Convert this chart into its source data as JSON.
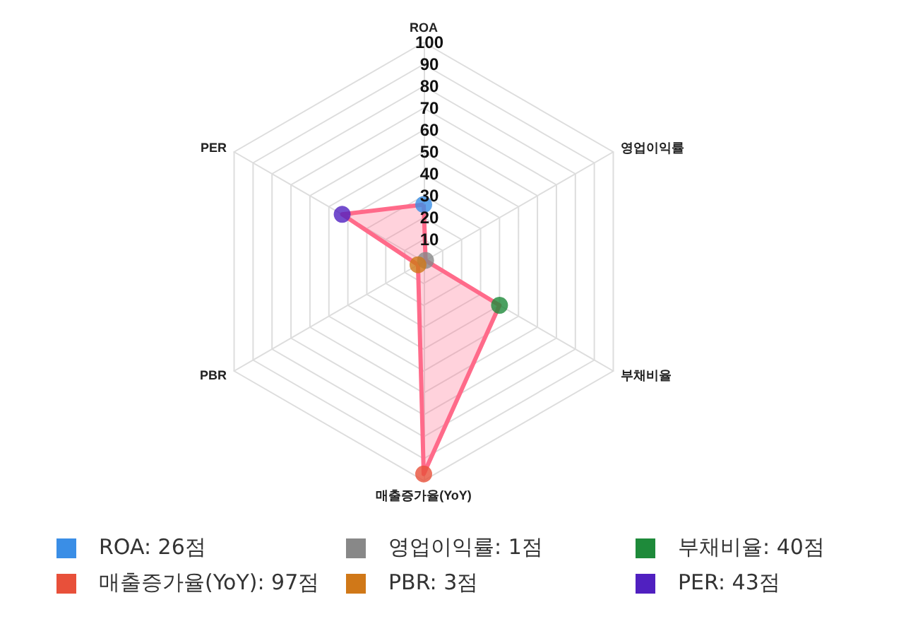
{
  "chart_data": {
    "type": "radar",
    "categories": [
      "ROA",
      "영업이익률",
      "부채비율",
      "매출증가율(YoY)",
      "PBR",
      "PER"
    ],
    "series": [
      {
        "color": "#ff6b8a",
        "values": [
          26,
          1,
          40,
          97,
          3,
          43
        ]
      }
    ],
    "colors": [
      "#3a8ee6",
      "#888888",
      "#1e8a3a",
      "#e8503a",
      "#d07818",
      "#5020c0"
    ],
    "value_labels": [
      "ROA: 26점",
      "영업이익률: 1점",
      "부채비율: 40점",
      "매출증가율(YoY): 97점",
      "PBR: 3점",
      "PER: 43점"
    ],
    "ylim": [
      0,
      100
    ],
    "yticks": [
      10,
      20,
      30,
      40,
      50,
      60,
      70,
      80,
      90,
      100
    ],
    "marker": "circle",
    "grid": true
  }
}
